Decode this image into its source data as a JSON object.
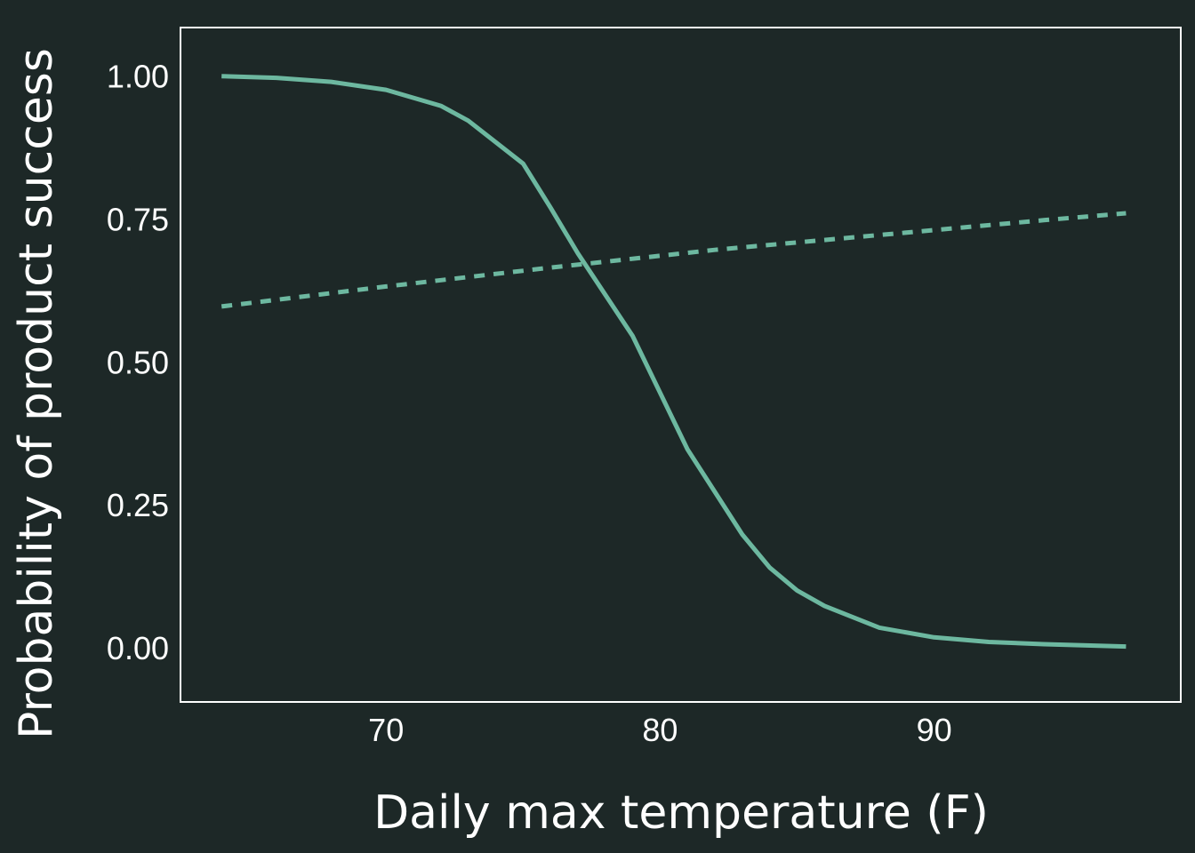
{
  "colors": {
    "background": "#1d2827",
    "panel_border": "#ffffff",
    "text": "#ffffff",
    "series": "#6db8a0"
  },
  "chart_data": {
    "type": "line",
    "title": "",
    "xlabel": "Daily max temperature (F)",
    "ylabel": "Probability of product success",
    "xlim": [
      62.5,
      99
    ],
    "ylim": [
      -0.095,
      1.085
    ],
    "xticks": [
      70,
      80,
      90
    ],
    "xtick_labels": [
      "70",
      "80",
      "90"
    ],
    "yticks": [
      0,
      0.25,
      0.5,
      0.75,
      1
    ],
    "ytick_labels": [
      "0.00",
      "0.25",
      "0.50",
      "0.75",
      "1.00"
    ],
    "grid": false,
    "legend": "none",
    "series": [
      {
        "style": "solid",
        "x": [
          64,
          66,
          68,
          70,
          72,
          73,
          75,
          76,
          77,
          79,
          81,
          83,
          84,
          85,
          86,
          88,
          90,
          92,
          94,
          97
        ],
        "y": [
          1.0,
          0.997,
          0.99,
          0.976,
          0.948,
          0.922,
          0.847,
          0.77,
          0.69,
          0.545,
          0.347,
          0.198,
          0.14,
          0.1,
          0.073,
          0.035,
          0.018,
          0.01,
          0.006,
          0.002
        ]
      },
      {
        "style": "dashed",
        "x": [
          64,
          70,
          76,
          82,
          88,
          94,
          97
        ],
        "y": [
          0.597,
          0.632,
          0.665,
          0.696,
          0.722,
          0.748,
          0.76
        ]
      }
    ]
  }
}
